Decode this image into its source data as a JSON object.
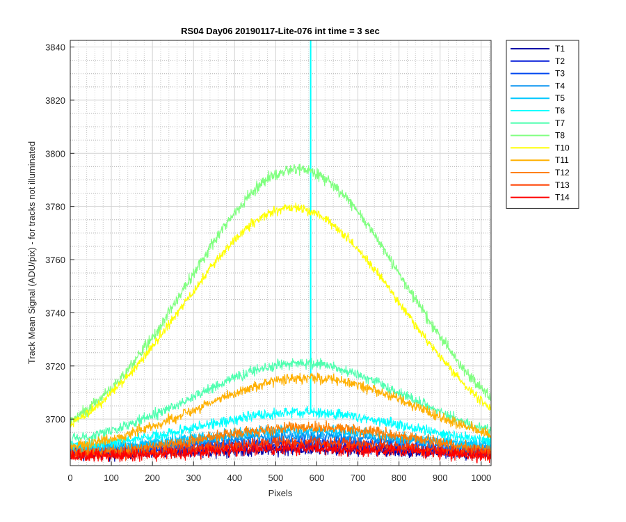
{
  "chart_data": {
    "type": "line",
    "title": "RS04 Day06 20190117-Lite-076 int time = 3 sec",
    "xlabel": "Pixels",
    "ylabel": "Track Mean Signal (ADU/pix) - for tracks not illuminated",
    "xlim": [
      0,
      1024
    ],
    "ylim": [
      3682.5,
      3842.5
    ],
    "xticks": [
      0,
      100,
      200,
      300,
      400,
      500,
      600,
      700,
      800,
      900,
      1000
    ],
    "yticks": [
      3700,
      3720,
      3740,
      3760,
      3780,
      3800,
      3820,
      3840
    ],
    "grid": "on (major solid, minor dotted)",
    "legend_location": "outside right, top",
    "series": [
      {
        "name": "T1",
        "color": "#0000a8",
        "base": 3686.5,
        "amp": 2.0,
        "center": 560,
        "sigma": 260,
        "noise": 2.2
      },
      {
        "name": "T2",
        "color": "#0018d8",
        "base": 3687.0,
        "amp": 3.0,
        "center": 560,
        "sigma": 260,
        "noise": 2.2
      },
      {
        "name": "T3",
        "color": "#0048f0",
        "base": 3687.5,
        "amp": 4.0,
        "center": 560,
        "sigma": 260,
        "noise": 2.2
      },
      {
        "name": "T4",
        "color": "#0090f0",
        "base": 3688.0,
        "amp": 5.5,
        "center": 560,
        "sigma": 260,
        "noise": 2.2
      },
      {
        "name": "T5",
        "color": "#00c8ff",
        "base": 3688.5,
        "amp": 7.0,
        "center": 570,
        "sigma": 260,
        "noise": 2.2
      },
      {
        "name": "T6",
        "color": "#00ffff",
        "base": 3688.5,
        "amp": 14.0,
        "center": 570,
        "sigma": 260,
        "noise": 2.0,
        "spike_x": 585,
        "spike_to": 3842.5
      },
      {
        "name": "T7",
        "color": "#50ffb0",
        "base": 3689.0,
        "amp": 32.0,
        "center": 560,
        "sigma": 260,
        "noise": 2.0
      },
      {
        "name": "T8",
        "color": "#80ff80",
        "base": 3688.0,
        "amp": 106.0,
        "center": 550,
        "sigma": 260,
        "noise": 2.2
      },
      {
        "name": "T10",
        "color": "#ffff00",
        "base": 3686.5,
        "amp": 93.0,
        "center": 540,
        "sigma": 265,
        "noise": 1.8
      },
      {
        "name": "T11",
        "color": "#ffb000",
        "base": 3686.5,
        "amp": 29.0,
        "center": 580,
        "sigma": 270,
        "noise": 2.0
      },
      {
        "name": "T12",
        "color": "#ff8000",
        "base": 3686.0,
        "amp": 11.0,
        "center": 580,
        "sigma": 260,
        "noise": 2.2
      },
      {
        "name": "T13",
        "color": "#ff4000",
        "base": 3686.0,
        "amp": 5.0,
        "center": 580,
        "sigma": 260,
        "noise": 2.2
      },
      {
        "name": "T14",
        "color": "#ff0000",
        "base": 3685.5,
        "amp": 3.5,
        "center": 580,
        "sigma": 260,
        "noise": 2.4
      }
    ]
  }
}
